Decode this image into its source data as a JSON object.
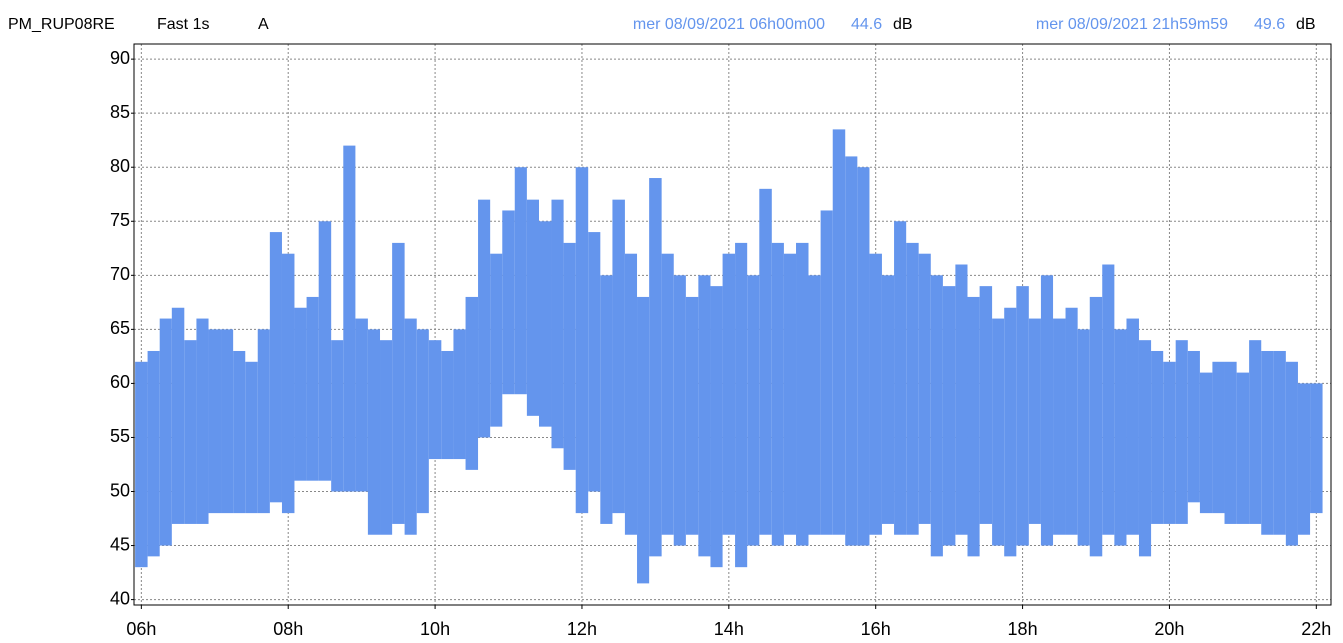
{
  "header": {
    "station": "PM_RUP08RE",
    "mode": "Fast 1s",
    "weighting": "A",
    "cursor1": {
      "time": "mer 08/09/2021 06h00m00",
      "value": "44.6",
      "unit": "dB"
    },
    "cursor2": {
      "time": "mer 08/09/2021 21h59m59",
      "value": "49.6",
      "unit": "dB"
    }
  },
  "chart_data": {
    "type": "range",
    "color": "#6495ed",
    "grid": true,
    "xlim": [
      5.9,
      22.2
    ],
    "ylim": [
      39.5,
      91.4
    ],
    "xticks": [
      {
        "value": 6,
        "label": "06h"
      },
      {
        "value": 8,
        "label": "08h"
      },
      {
        "value": 10,
        "label": "10h"
      },
      {
        "value": 12,
        "label": "12h"
      },
      {
        "value": 14,
        "label": "14h"
      },
      {
        "value": 16,
        "label": "16h"
      },
      {
        "value": 18,
        "label": "18h"
      },
      {
        "value": 20,
        "label": "20h"
      },
      {
        "value": 22,
        "label": "22h"
      }
    ],
    "yticks": [
      40,
      45,
      50,
      55,
      60,
      65,
      70,
      75,
      80,
      85,
      90
    ],
    "x": [
      6,
      6.17,
      6.33,
      6.5,
      6.67,
      6.83,
      7,
      7.17,
      7.33,
      7.5,
      7.67,
      7.83,
      8,
      8.17,
      8.33,
      8.5,
      8.67,
      8.83,
      9,
      9.17,
      9.33,
      9.5,
      9.67,
      9.83,
      10,
      10.17,
      10.33,
      10.5,
      10.67,
      10.83,
      11,
      11.17,
      11.33,
      11.5,
      11.67,
      11.83,
      12,
      12.17,
      12.33,
      12.5,
      12.67,
      12.83,
      13,
      13.17,
      13.33,
      13.5,
      13.67,
      13.83,
      14,
      14.17,
      14.33,
      14.5,
      14.67,
      14.83,
      15,
      15.17,
      15.33,
      15.5,
      15.67,
      15.83,
      16,
      16.17,
      16.33,
      16.5,
      16.67,
      16.83,
      17,
      17.17,
      17.33,
      17.5,
      17.67,
      17.83,
      18,
      18.17,
      18.33,
      18.5,
      18.67,
      18.83,
      19,
      19.17,
      19.33,
      19.5,
      19.67,
      19.83,
      20,
      20.17,
      20.33,
      20.5,
      20.67,
      20.83,
      21,
      21.17,
      21.33,
      21.5,
      21.67,
      21.83,
      22
    ],
    "series": [
      {
        "values": [
          62,
          63,
          66,
          67,
          64,
          66,
          65,
          65,
          63,
          62,
          65,
          74,
          72,
          67,
          68,
          75,
          64,
          82,
          66,
          65,
          64,
          73,
          66,
          65,
          64,
          63,
          65,
          68,
          77,
          72,
          76,
          80,
          77,
          75,
          77,
          73,
          80,
          74,
          70,
          77,
          72,
          68,
          79,
          72,
          70,
          68,
          70,
          69,
          72,
          73,
          70,
          78,
          73,
          72,
          73,
          70,
          76,
          83.5,
          81,
          80,
          72,
          70,
          75,
          73,
          72,
          70,
          69,
          71,
          68,
          69,
          66,
          67,
          69,
          66,
          70,
          66,
          67,
          65,
          68,
          71,
          65,
          66,
          64,
          63,
          62,
          64,
          63,
          61,
          62,
          62,
          61,
          64,
          63,
          63,
          62,
          60,
          60
        ]
      },
      {
        "values": [
          43,
          44,
          45,
          47,
          47,
          47,
          48,
          48,
          48,
          48,
          48,
          49,
          48,
          51,
          51,
          51,
          50,
          50,
          50,
          46,
          46,
          47,
          46,
          48,
          53,
          53,
          53,
          52,
          55,
          56,
          59,
          59,
          57,
          56,
          54,
          52,
          48,
          50,
          47,
          48,
          46,
          41.5,
          44,
          46,
          45,
          46,
          44,
          43,
          46,
          43,
          45,
          46,
          45,
          46,
          45,
          46,
          46,
          46,
          45,
          45,
          46,
          47,
          46,
          46,
          47,
          44,
          45,
          46,
          44,
          47,
          45,
          44,
          45,
          47,
          45,
          46,
          46,
          45,
          44,
          46,
          45,
          46,
          44,
          47,
          47,
          47,
          49,
          48,
          48,
          47,
          47,
          47,
          46,
          46,
          45,
          46,
          48
        ]
      }
    ]
  }
}
